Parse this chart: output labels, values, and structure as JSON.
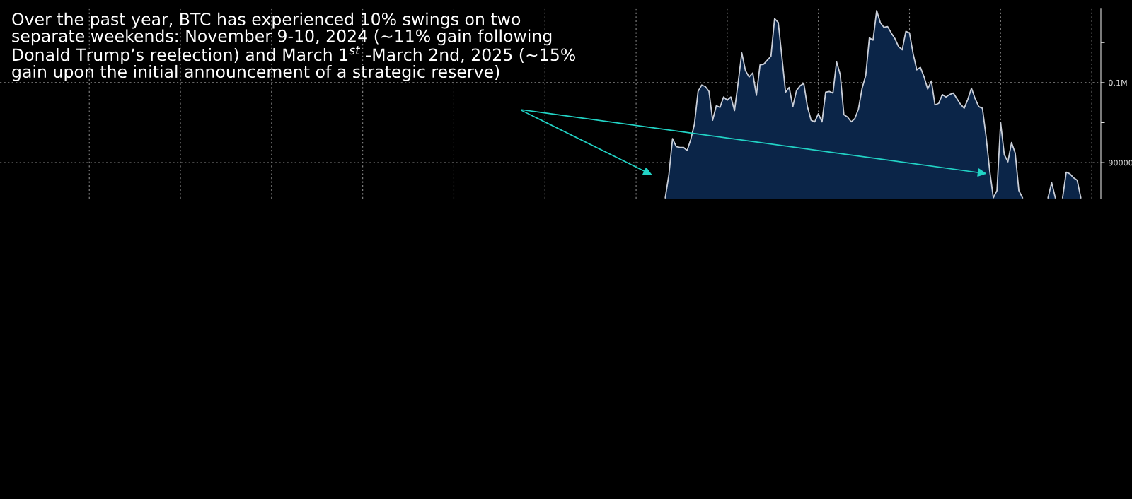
{
  "chart_data": {
    "type": "area",
    "annotations": [
      "Over the past year, BTC has experienced 10% swings on two\nseparate weekends: November 9-10, 2024 (~11% gain following\nDonald Trump’s reelection) and March 1$^{st}$ -March 2nd, 2025 (~15%\ngain upon the initial announcement of a strategic reserve)"
    ],
    "categories": [
      null,
      null,
      null,
      null,
      null,
      null,
      null,
      null,
      null,
      null,
      null,
      null,
      null,
      null,
      null,
      null,
      null,
      null,
      null,
      null,
      null,
      null,
      null,
      null,
      null,
      null,
      null,
      null,
      null,
      null,
      null,
      null,
      null,
      null,
      null,
      null,
      null,
      null,
      null,
      null,
      null,
      null,
      null,
      null,
      null,
      null,
      null,
      null,
      null,
      null,
      null,
      null,
      null,
      null,
      null,
      null,
      null,
      null,
      null,
      null,
      null,
      null,
      null,
      null,
      null,
      null,
      null,
      null,
      null,
      null,
      null,
      null,
      null,
      null,
      null,
      null,
      null,
      null,
      null,
      null,
      null,
      null,
      null,
      null,
      null,
      null,
      null,
      null,
      null,
      null,
      null,
      null,
      null,
      null,
      null,
      null,
      null,
      null,
      null,
      null,
      null,
      null,
      null,
      null,
      null,
      null,
      null,
      null,
      null,
      null,
      null,
      null,
      null,
      null,
      null,
      null,
      null,
      null,
      null,
      null,
      null,
      null,
      null,
      null,
      null,
      null,
      null,
      null,
      null,
      null,
      null,
      null,
      null,
      null,
      null,
      null,
      null,
      null,
      null,
      null,
      null,
      null,
      null,
      null,
      null,
      null,
      null,
      null,
      null,
      null,
      null,
      null,
      null,
      null,
      null,
      null,
      null,
      null,
      null,
      null,
      null,
      null,
      null,
      null,
      null,
      null,
      null,
      null,
      null,
      null,
      null,
      null,
      null,
      null,
      null,
      null,
      null,
      null,
      null,
      null,
      null,
      null,
      null,
      null,
      null,
      null,
      null,
      null,
      null,
      null,
      null,
      null,
      null,
      null,
      null,
      null,
      null,
      null,
      null,
      null,
      null,
      null,
      null,
      null,
      null,
      null,
      null,
      null,
      null,
      null,
      null,
      null,
      null,
      null,
      null,
      null,
      null,
      null,
      null,
      null,
      null,
      null,
      null,
      null,
      null,
      null,
      null,
      null,
      null,
      null,
      null,
      null,
      null,
      null,
      null,
      null,
      null,
      null,
      null,
      null,
      null,
      null,
      null,
      null,
      null,
      null,
      null,
      null,
      null,
      null,
      null,
      null,
      null,
      null,
      null,
      null,
      null,
      null,
      null,
      null,
      null,
      null,
      null,
      null,
      null,
      null,
      null,
      null,
      null,
      null,
      null,
      null,
      null,
      null,
      null,
      null,
      null,
      null,
      null,
      null,
      null,
      null,
      null,
      null,
      null,
      null,
      null,
      null,
      null,
      null,
      null,
      null,
      null,
      null,
      null,
      null,
      null,
      null,
      null,
      null,
      null,
      null
    ],
    "series": [
      {
        "color": "#0b2548",
        "values": [
          null,
          null,
          null,
          null,
          null,
          null,
          null,
          null,
          null,
          null,
          null,
          null,
          null,
          null,
          null,
          null,
          null,
          null,
          null,
          null,
          null,
          null,
          null,
          null,
          null,
          null,
          null,
          null,
          null,
          null,
          null,
          null,
          null,
          null,
          null,
          null,
          null,
          null,
          null,
          null,
          null,
          null,
          null,
          null,
          null,
          null,
          null,
          null,
          null,
          null,
          null,
          null,
          null,
          null,
          null,
          null,
          null,
          null,
          null,
          null,
          null,
          null,
          null,
          null,
          null,
          null,
          null,
          null,
          null,
          null,
          null,
          null,
          null,
          null,
          null,
          null,
          null,
          null,
          null,
          null,
          null,
          null,
          null,
          null,
          null,
          null,
          null,
          null,
          null,
          null,
          null,
          null,
          null,
          null,
          null,
          null,
          null,
          null,
          null,
          null,
          null,
          null,
          null,
          null,
          null,
          null,
          null,
          null,
          null,
          null,
          null,
          null,
          null,
          null,
          null,
          null,
          null,
          null,
          null,
          null,
          null,
          null,
          null,
          null,
          null,
          null,
          null,
          null,
          null,
          null,
          null,
          null,
          null,
          null,
          null,
          null,
          null,
          null,
          null,
          null,
          null,
          null,
          null,
          null,
          null,
          null,
          null,
          null,
          null,
          null,
          null,
          null,
          null,
          null,
          null,
          null,
          null,
          null,
          null,
          null,
          null,
          null,
          null,
          null,
          null,
          null,
          null,
          null,
          null,
          null,
          null,
          null,
          null,
          null,
          null,
          null,
          null,
          null,
          null,
          null,
          null,
          null,
          85600,
          88500,
          93000,
          92000,
          91900,
          91900,
          91500,
          92900,
          94800,
          98900,
          99700,
          99500,
          98900,
          95300,
          97100,
          96900,
          98200,
          97800,
          98200,
          96500,
          100000,
          103700,
          101500,
          100700,
          101200,
          98400,
          102200,
          102300,
          102800,
          103300,
          108000,
          107500,
          103200,
          98800,
          99400,
          97000,
          99000,
          99600,
          99900,
          97000,
          95300,
          95100,
          96100,
          95100,
          98800,
          98900,
          98700,
          102600,
          101000,
          96000,
          95700,
          95100,
          95500,
          96700,
          99300,
          100900,
          105600,
          105300,
          109000,
          107500,
          106900,
          107000,
          106200,
          105500,
          104500,
          104100,
          106400,
          106200,
          103600,
          101600,
          101900,
          100700,
          99200,
          100200,
          97200,
          97400,
          98500,
          98200,
          98500,
          98700,
          98000,
          97300,
          96800,
          97900,
          99300,
          98000,
          97000,
          96800,
          93300,
          89000,
          85600,
          86500,
          95000,
          91000,
          90100,
          92500,
          91200,
          86500,
          85600,
          null,
          null,
          null,
          null,
          null,
          null,
          85600,
          87500,
          85600,
          null,
          85600,
          88800,
          88600,
          88100,
          87800,
          85600,
          null,
          null,
          null,
          null,
          null
        ]
      }
    ],
    "ylim": [
      85500,
      109200
    ],
    "yticks": [
      90000,
      {
        "value": 95000,
        "label": null
      },
      {
        "value": 100000,
        "label": "0.1M"
      },
      {
        "value": 105000,
        "label": null
      }
    ],
    "grid": true,
    "tick_labels": "y"
  }
}
